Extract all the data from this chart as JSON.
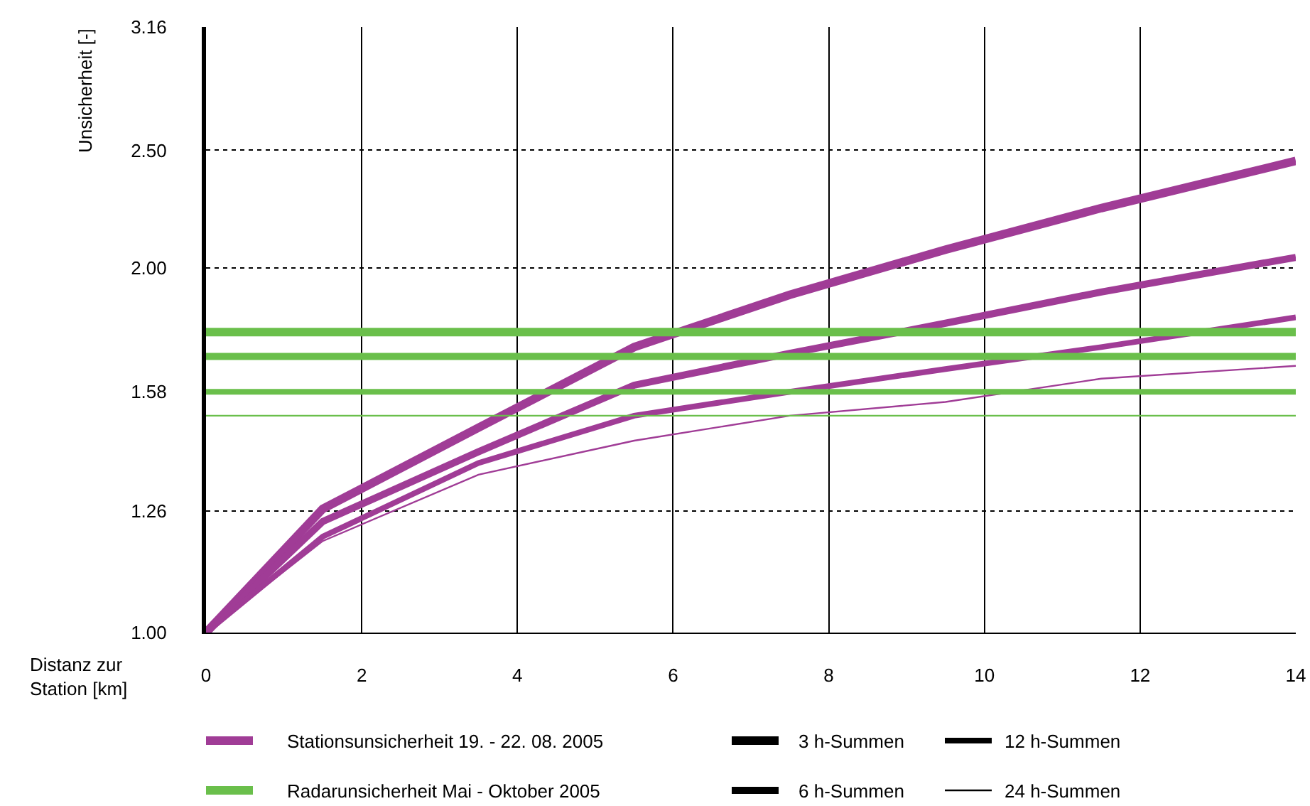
{
  "chart_data": {
    "type": "line",
    "xlabel": "Distanz zur\nStation [km]",
    "ylabel": "Unsicherheit [-]",
    "x": [
      0,
      1.5,
      3.5,
      5.5,
      7.5,
      9.5,
      11.5,
      14
    ],
    "series": [
      {
        "color": "#a03c96",
        "values": [
          1.0,
          1.265,
          1.476,
          1.72,
          1.9,
          2.07,
          2.24,
          2.45
        ]
      },
      {
        "color": "#a03c96",
        "values": [
          1.0,
          1.235,
          1.41,
          1.6,
          1.7,
          1.8,
          1.91,
          2.04
        ]
      },
      {
        "color": "#a03c96",
        "values": [
          1.0,
          1.2,
          1.38,
          1.51,
          1.58,
          1.65,
          1.72,
          1.82
        ]
      },
      {
        "color": "#a03c96",
        "values": [
          1.0,
          1.19,
          1.35,
          1.44,
          1.51,
          1.55,
          1.62,
          1.66
        ]
      }
    ],
    "ref_lines": [
      {
        "axis": "y",
        "value": 1.77,
        "color": "#6abf4b"
      },
      {
        "axis": "y",
        "value": 1.69,
        "color": "#6abf4b"
      },
      {
        "axis": "y",
        "value": 1.58,
        "color": "#6abf4b"
      },
      {
        "axis": "y",
        "value": 1.51,
        "color": "#6abf4b"
      }
    ],
    "log": "y",
    "xlim": [
      0,
      14
    ],
    "xticks": [
      0,
      2,
      4,
      6,
      8,
      10,
      12,
      14
    ],
    "ylim": [
      1.0,
      3.16
    ],
    "yticks": [
      {
        "value": 1.0,
        "label": "1.00"
      },
      {
        "value": 1.26,
        "label": "1.26"
      },
      {
        "value": 1.58,
        "label": "1.58"
      },
      {
        "value": 2.0,
        "label": "2.00"
      },
      {
        "value": 2.5,
        "label": "2.50"
      },
      {
        "value": 3.16,
        "label": "3.16"
      }
    ],
    "grid": true,
    "annotations": [
      "Stationsunsicherheit 19. - 22. 08. 2005",
      "Radarunsicherheit Mai - Oktober 2005",
      "3 h-Summen",
      "6 h-Summen",
      "12 h-Summen",
      "24 h-Summen"
    ]
  }
}
